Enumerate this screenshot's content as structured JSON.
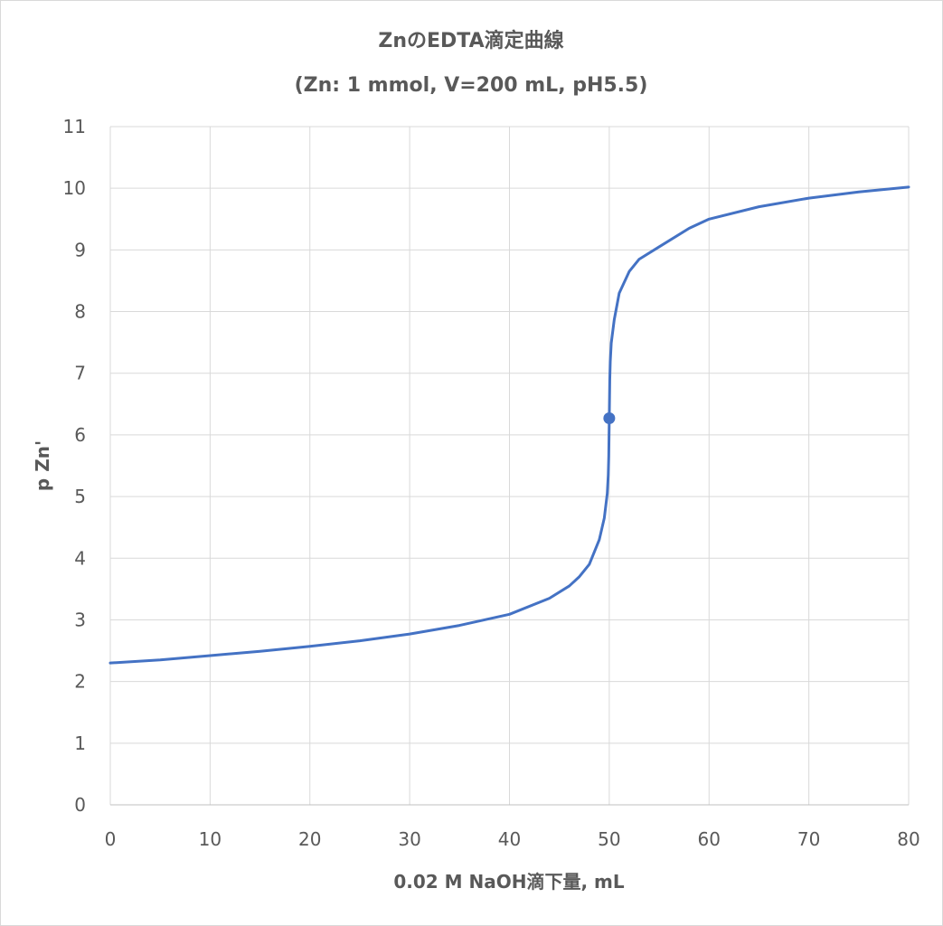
{
  "chart_data": {
    "type": "line",
    "title": "ZnのEDTA滴定曲線",
    "subtitle": "(Zn: 1 mmol, V=200 mL, pH5.5)",
    "xlabel": "0.02 M NaOH滴下量, mL",
    "ylabel": "p Zn'",
    "xlim": [
      0,
      80
    ],
    "ylim": [
      0,
      11
    ],
    "x_ticks": [
      0,
      10,
      20,
      30,
      40,
      50,
      60,
      70,
      80
    ],
    "y_ticks": [
      0,
      1,
      2,
      3,
      4,
      5,
      6,
      7,
      8,
      9,
      10,
      11
    ],
    "grid": true,
    "legend": "none",
    "series": [
      {
        "color": "#4472c4",
        "x": [
          0,
          5,
          10,
          15,
          20,
          25,
          30,
          35,
          40,
          44,
          46,
          47,
          48,
          49,
          49.5,
          49.8,
          49.9,
          49.95,
          50,
          50.05,
          50.1,
          50.2,
          50.5,
          51,
          52,
          53,
          55,
          58,
          60,
          65,
          70,
          75,
          80
        ],
        "y": [
          2.3,
          2.35,
          2.42,
          2.49,
          2.57,
          2.66,
          2.77,
          2.91,
          3.09,
          3.35,
          3.55,
          3.7,
          3.9,
          4.3,
          4.65,
          5.05,
          5.35,
          5.65,
          6.27,
          6.89,
          7.19,
          7.49,
          7.87,
          8.3,
          8.65,
          8.85,
          9.05,
          9.35,
          9.5,
          9.7,
          9.84,
          9.94,
          10.02
        ]
      }
    ],
    "marker": {
      "x": 50,
      "y": 6.27,
      "color": "#4472c4"
    }
  }
}
